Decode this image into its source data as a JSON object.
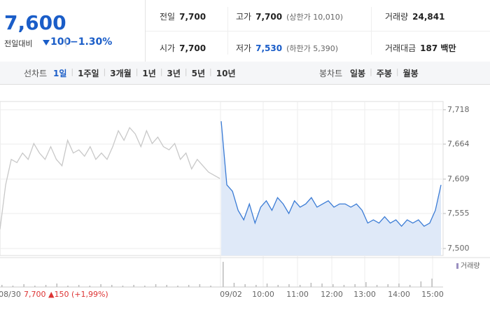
{
  "header": {
    "price": "7,600",
    "change_label": "전일대비",
    "change": "100",
    "change_pct": "−1.30%",
    "stats": [
      {
        "label": "전일",
        "value": "7,700"
      },
      {
        "label": "고가",
        "value": "7,700",
        "note": "(상한가 10,010)"
      },
      {
        "label": "거래량",
        "value": "24,841"
      },
      {
        "label": "시가",
        "value": "7,700"
      },
      {
        "label": "저가",
        "value": "7,530",
        "note": "(하한가 5,390)"
      },
      {
        "label": "거래대금",
        "value": "187 백만"
      }
    ]
  },
  "toolbar": {
    "line_label": "선차트",
    "ranges": [
      "1일",
      "1주일",
      "3개월",
      "1년",
      "3년",
      "5년",
      "10년"
    ],
    "candle_label": "봉차트",
    "candles": [
      "일봉",
      "주봉",
      "월봉"
    ]
  },
  "chart_data": {
    "type": "line",
    "prev_close_label": "7,700 ▲150 (+1,99%)",
    "x_labels": [
      "08/30",
      "09/02",
      "10:00",
      "11:00",
      "12:00",
      "13:00",
      "14:00",
      "15:00"
    ],
    "ylim": [
      7489,
      7731
    ],
    "yticks": [
      {
        "value": 7718,
        "label": "7,718"
      },
      {
        "value": 7664,
        "label": "7,664"
      },
      {
        "value": 7609,
        "label": "7,609"
      },
      {
        "value": 7555,
        "label": "7,555"
      },
      {
        "value": 7500,
        "label": "7,500"
      }
    ],
    "grid": true,
    "series": [
      {
        "color": "#c8c8c8",
        "values": [
          7530,
          7600,
          7640,
          7635,
          7650,
          7640,
          7665,
          7650,
          7640,
          7660,
          7640,
          7630,
          7670,
          7650,
          7655,
          7645,
          7660,
          7640,
          7650,
          7640,
          7660,
          7685,
          7670,
          7690,
          7680,
          7660,
          7685,
          7665,
          7675,
          7660,
          7655,
          7665,
          7640,
          7650,
          7625,
          7640,
          7630,
          7620,
          7615,
          7610
        ]
      },
      {
        "color": "#3a7bd5",
        "fill": "#dfe9f8",
        "values": [
          7700,
          7600,
          7590,
          7560,
          7545,
          7570,
          7540,
          7565,
          7575,
          7560,
          7580,
          7570,
          7555,
          7575,
          7565,
          7570,
          7580,
          7565,
          7570,
          7575,
          7565,
          7570,
          7570,
          7565,
          7570,
          7560,
          7540,
          7545,
          7540,
          7550,
          7540,
          7545,
          7535,
          7545,
          7540,
          7545,
          7535,
          7540,
          7560,
          7600
        ]
      }
    ],
    "volume": {
      "name": "거래량",
      "color": "#bbbbbb",
      "vlim": [
        0,
        40
      ],
      "values": [
        3,
        2,
        4,
        2,
        3,
        5,
        2,
        3,
        2,
        4,
        3,
        2,
        3,
        2,
        4,
        3,
        2,
        3,
        4,
        2,
        36,
        6,
        4,
        3,
        5,
        3,
        4,
        3,
        6,
        5,
        4,
        3,
        4,
        7,
        3,
        4,
        5,
        3,
        8,
        12
      ]
    }
  }
}
